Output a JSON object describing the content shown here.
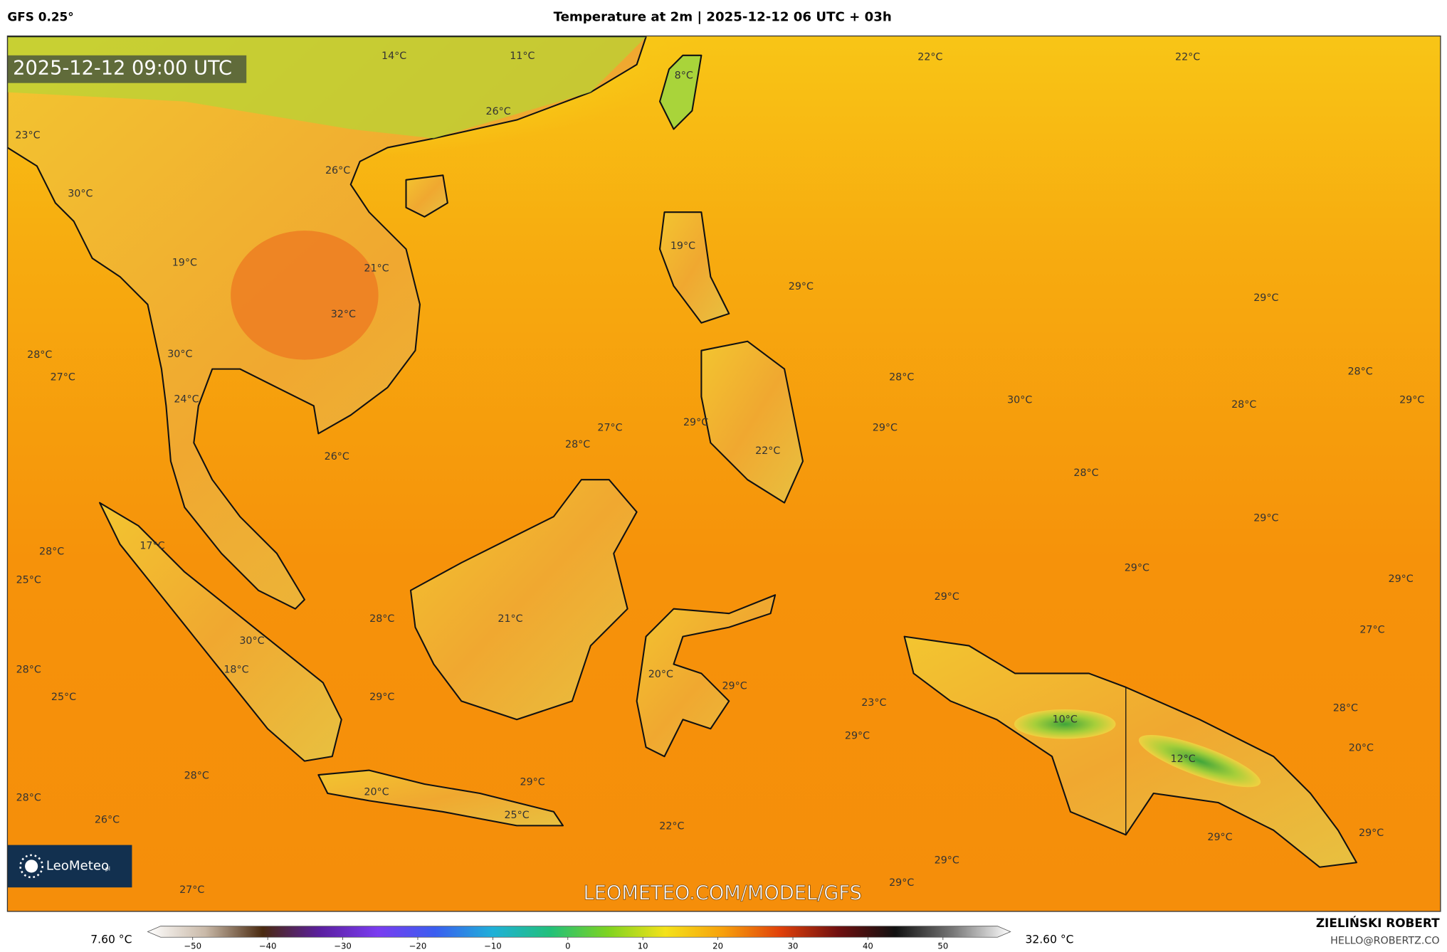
{
  "header": {
    "model": "GFS 0.25°",
    "title": "Temperature at 2m | 2025-12-12 06 UTC + 03h"
  },
  "map": {
    "timestamp": "2025-12-12 09:00 UTC",
    "watermark": "LEOMETEO.COM/MODEL/GFS",
    "logo": "LeoMeteo",
    "logo_suffix": "pl",
    "labels": [
      "14°C",
      "11°C",
      "8°C",
      "22°C",
      "22°C",
      "23°C",
      "26°C",
      "26°C",
      "30°C",
      "19°C",
      "19°C",
      "21°C",
      "29°C",
      "29°C",
      "32°C",
      "28°C",
      "30°C",
      "27°C",
      "28°C",
      "28°C",
      "24°C",
      "30°C",
      "28°C",
      "29°C",
      "27°C",
      "29°C",
      "29°C",
      "28°C",
      "22°C",
      "26°C",
      "28°C",
      "29°C",
      "17°C",
      "28°C",
      "25°C",
      "29°C",
      "29°C",
      "29°C",
      "28°C",
      "21°C",
      "27°C",
      "30°C",
      "18°C",
      "28°C",
      "20°C",
      "29°C",
      "25°C",
      "29°C",
      "23°C",
      "28°C",
      "10°C",
      "29°C",
      "20°C",
      "12°C",
      "28°C",
      "29°C",
      "20°C",
      "28°C",
      "25°C",
      "26°C",
      "22°C",
      "29°C",
      "29°C",
      "29°C",
      "29°C",
      "27°C"
    ]
  },
  "colorbar": {
    "min_label": "7.60 °C",
    "max_label": "32.60 °C",
    "lim": [
      -56,
      59
    ],
    "ticks": [
      {
        "value": -50,
        "label": "−50"
      },
      {
        "value": -40,
        "label": "−40"
      },
      {
        "value": -30,
        "label": "−30"
      },
      {
        "value": -20,
        "label": "−20"
      },
      {
        "value": -10,
        "label": "−10"
      },
      0,
      10,
      20,
      30,
      40,
      50
    ],
    "colors": [
      "#ffffff",
      "#c9b9a8",
      "#4a2a10",
      "#5b1fa0",
      "#7a3cf0",
      "#3a5ef0",
      "#1fb0d8",
      "#22c07a",
      "#7ed321",
      "#f4e21a",
      "#f7a00c",
      "#e0400a",
      "#701010",
      "#111111",
      "#777777",
      "#ffffff"
    ]
  },
  "credits": {
    "author": "ZIELIŃSKI ROBERT",
    "email": "HELLO@ROBERTZ.CO"
  }
}
